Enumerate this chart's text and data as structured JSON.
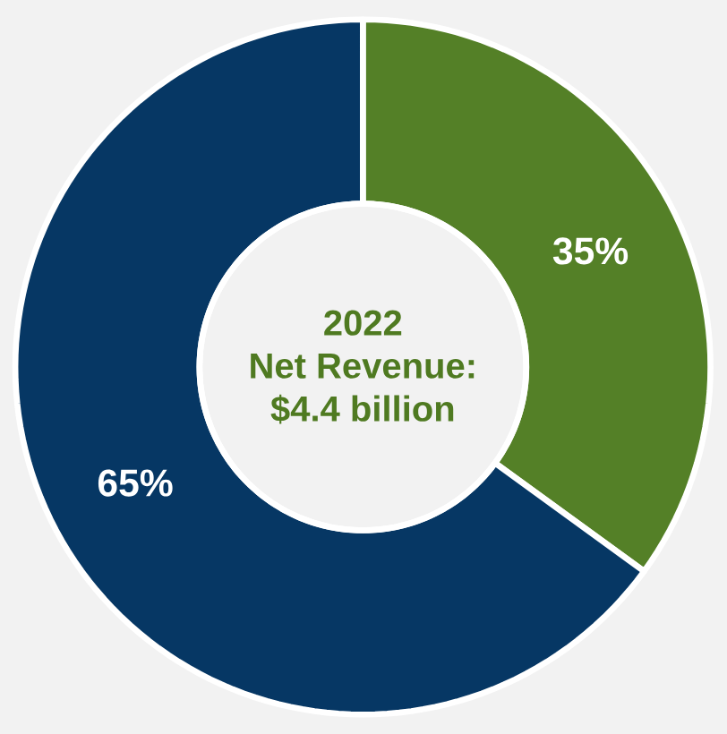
{
  "chart_data": {
    "type": "donut",
    "title": "2022",
    "subtitle": "Net Revenue: $4.4 billion",
    "categories": [
      null,
      null
    ],
    "values": [
      35,
      65
    ],
    "colors": [
      "#548027",
      "#063764"
    ],
    "value_labels": [
      "35%",
      "65%"
    ]
  }
}
